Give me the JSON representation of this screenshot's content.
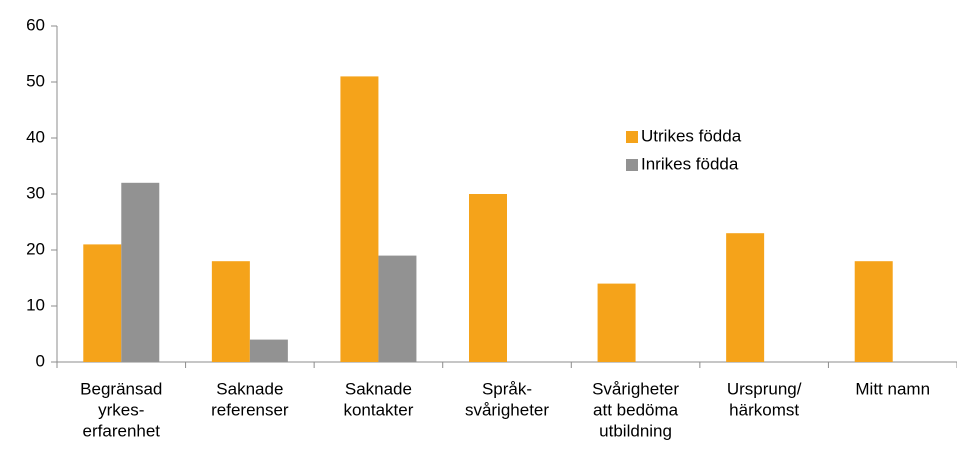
{
  "chart_data": {
    "type": "bar",
    "categories": [
      [
        "Begränsad",
        "yrkes-",
        "erfarenhet"
      ],
      [
        "Saknade",
        "referenser"
      ],
      [
        "Saknade",
        "kontakter"
      ],
      [
        "Språk-",
        "svårigheter"
      ],
      [
        "Svårigheter",
        "att bedöma",
        "utbildning"
      ],
      [
        "Ursprung/",
        "härkomst"
      ],
      [
        "Mitt namn"
      ]
    ],
    "series": [
      {
        "name": "Utrikes födda",
        "color": "#f5a31a",
        "values": [
          21,
          18,
          51,
          30,
          14,
          23,
          18
        ]
      },
      {
        "name": "Inrikes födda",
        "color": "#929292",
        "values": [
          32,
          4,
          19,
          null,
          null,
          null,
          null
        ]
      }
    ],
    "ylim": [
      0,
      60
    ],
    "yticks": [
      0,
      10,
      20,
      30,
      40,
      50,
      60
    ],
    "grid": false
  }
}
